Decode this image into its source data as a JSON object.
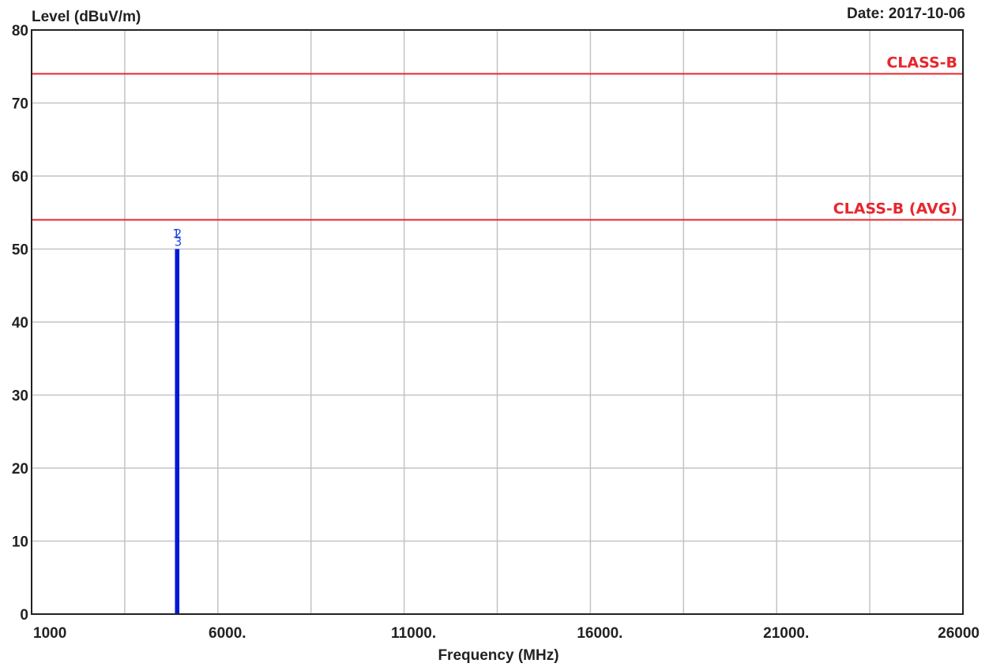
{
  "header": {
    "ylabel": "Level (dBuV/m)",
    "date": "Date: 2017-10-06"
  },
  "colors": {
    "grid": "#c4c4c4",
    "axis": "#222222",
    "limit": "#e8262e",
    "trace": "#0018d8",
    "marker": "#1e46e6"
  },
  "chart_data": {
    "type": "line",
    "title": "",
    "xlabel": "Frequency (MHz)",
    "ylabel": "Level (dBuV/m)",
    "xlim": [
      1000,
      26000
    ],
    "ylim": [
      0,
      80
    ],
    "grid": true,
    "x_ticks": [
      {
        "value": 1000,
        "label": "1000"
      },
      {
        "value": 6000,
        "label": "6000."
      },
      {
        "value": 11000,
        "label": "11000."
      },
      {
        "value": 16000,
        "label": "16000."
      },
      {
        "value": 21000,
        "label": "21000."
      },
      {
        "value": 26000,
        "label": "26000"
      }
    ],
    "x_minor_grid": [
      3500,
      8500,
      13500,
      18500,
      23500
    ],
    "y_ticks": [
      {
        "value": 0,
        "label": "0"
      },
      {
        "value": 10,
        "label": "10"
      },
      {
        "value": 20,
        "label": "20"
      },
      {
        "value": 30,
        "label": "30"
      },
      {
        "value": 40,
        "label": "40"
      },
      {
        "value": 50,
        "label": "50"
      },
      {
        "value": 60,
        "label": "60"
      },
      {
        "value": 70,
        "label": "70"
      },
      {
        "value": 80,
        "label": "80"
      }
    ],
    "limit_lines": [
      {
        "name": "CLASS-B",
        "value": 74
      },
      {
        "name": "CLASS-B (AVG)",
        "value": 54
      }
    ],
    "series": [
      {
        "x": [
          4880,
          4880
        ],
        "y": [
          0,
          50
        ]
      },
      {
        "x": [
          4935,
          4935
        ],
        "y": [
          0,
          50
        ]
      }
    ],
    "markers": [
      {
        "label": "1",
        "x": 4880,
        "y": 52.2
      },
      {
        "label": "2",
        "x": 4935,
        "y": 52.2
      },
      {
        "label": "3",
        "x": 4935,
        "y": 51.1
      }
    ]
  }
}
